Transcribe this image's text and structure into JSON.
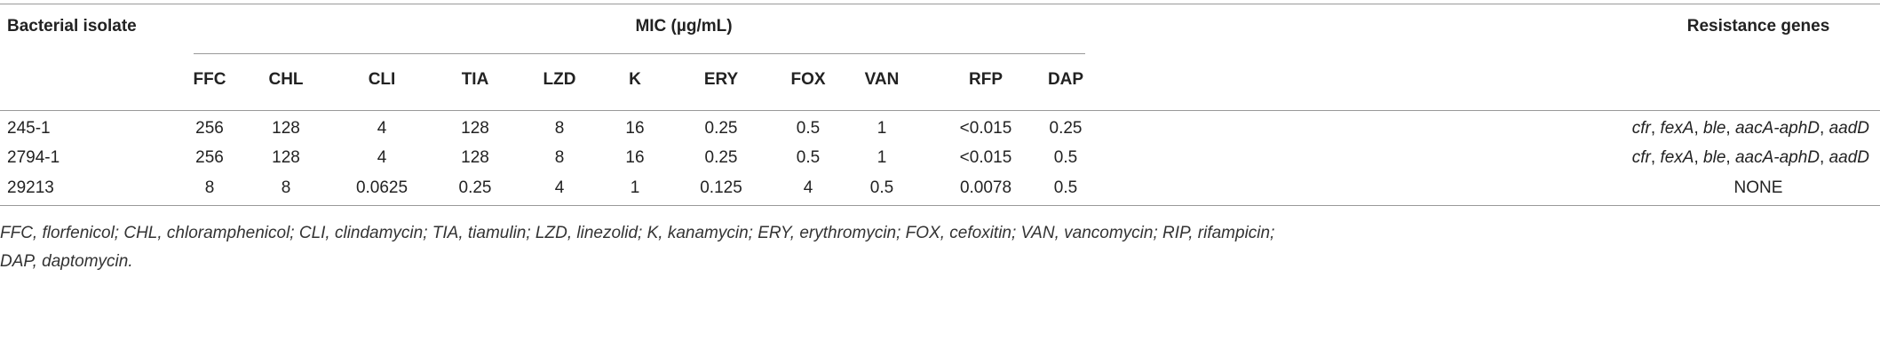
{
  "table": {
    "header": {
      "isolate": "Bacterial isolate",
      "mic": "MIC (µg/mL)",
      "genes": "Resistance genes",
      "drugs": [
        "FFC",
        "CHL",
        "CLI",
        "TIA",
        "LZD",
        "K",
        "ERY",
        "FOX",
        "VAN",
        "RFP",
        "DAP"
      ]
    },
    "rows": [
      {
        "isolate": "245-1",
        "mic": [
          "256",
          "128",
          "4",
          "128",
          "8",
          "16",
          "0.25",
          "0.5",
          "1",
          "<0.015",
          "0.25"
        ],
        "genes": [
          {
            "text": "cfr",
            "italic": true
          },
          {
            "text": ", "
          },
          {
            "text": "fexA",
            "italic": true
          },
          {
            "text": ", "
          },
          {
            "text": "ble",
            "italic": true
          },
          {
            "text": ", "
          },
          {
            "text": "aacA-aphD",
            "italic": true
          },
          {
            "text": ", "
          },
          {
            "text": "aadD",
            "italic": true
          }
        ]
      },
      {
        "isolate": "2794-1",
        "mic": [
          "256",
          "128",
          "4",
          "128",
          "8",
          "16",
          "0.25",
          "0.5",
          "1",
          "<0.015",
          "0.5"
        ],
        "genes": [
          {
            "text": "cfr",
            "italic": true
          },
          {
            "text": ", "
          },
          {
            "text": "fexA",
            "italic": true
          },
          {
            "text": ", "
          },
          {
            "text": "ble",
            "italic": true
          },
          {
            "text": ", "
          },
          {
            "text": "aacA-aphD",
            "italic": true
          },
          {
            "text": ", "
          },
          {
            "text": "aadD",
            "italic": true
          }
        ]
      },
      {
        "isolate": "29213",
        "mic": [
          "8",
          "8",
          "0.0625",
          "0.25",
          "4",
          "1",
          "0.125",
          "4",
          "0.5",
          "0.0078",
          "0.5"
        ],
        "genes": [
          {
            "text": "NONE"
          }
        ]
      }
    ]
  },
  "footnote": [
    "FFC, florfenicol; CHL, chloramphenicol; CLI, clindamycin; TIA, tiamulin; LZD, linezolid; K, kanamycin; ERY, erythromycin; FOX, cefoxitin; VAN, vancomycin; RIP, rifampicin;",
    "DAP, daptomycin."
  ]
}
